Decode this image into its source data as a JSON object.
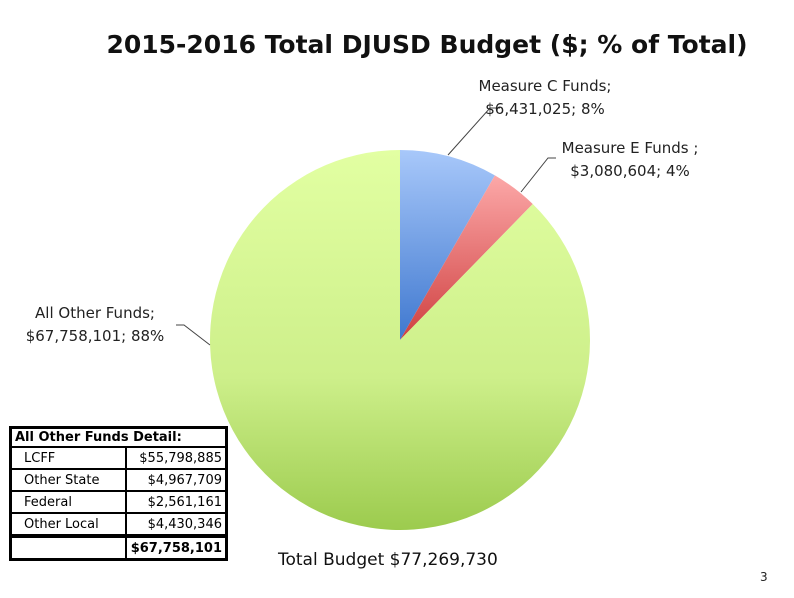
{
  "chart_data": {
    "type": "pie",
    "title": "2015-2016 Total DJUSD Budget ($; % of Total)",
    "slices": [
      {
        "name": "Measure C Funds;",
        "value": 6431025,
        "value_label": "$6,431,025; 8%",
        "color": "#6f9ee8"
      },
      {
        "name": "Measure E Funds ;",
        "value": 3080604,
        "value_label": "$3,080,604; 4%",
        "color": "#e86a6a"
      },
      {
        "name": "All Other Funds;",
        "value": 67758101,
        "value_label": "$67,758,101; 88%",
        "color": "#c4ea80"
      }
    ],
    "total_label": "Total Budget $77,269,730"
  },
  "detail_table": {
    "header": "All Other Funds Detail:",
    "rows": [
      {
        "label": "LCFF",
        "value": "$55,798,885"
      },
      {
        "label": "Other State",
        "value": "$4,967,709"
      },
      {
        "label": "Federal",
        "value": "$2,561,161"
      },
      {
        "label": "Other Local",
        "value": "$4,430,346"
      }
    ],
    "total": "$67,758,101"
  },
  "page_number": "3"
}
